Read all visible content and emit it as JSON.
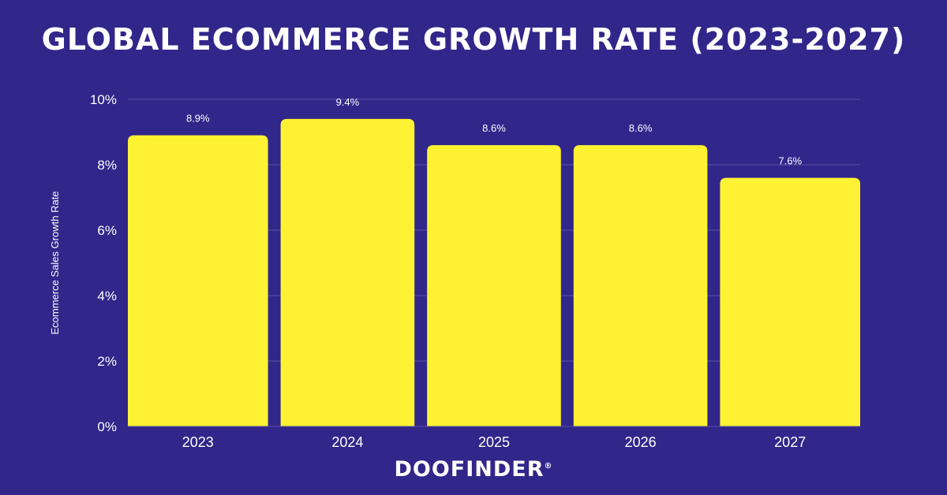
{
  "title": "GLOBAL ECOMMERCE GROWTH RATE (2023-2027)",
  "logo": {
    "text": "DOOFINDER",
    "reg": "®"
  },
  "colors": {
    "background": "#31268a",
    "bar": "#fff233",
    "text": "#ffffff",
    "grid": "#5a51a5"
  },
  "chart_data": {
    "type": "bar",
    "title": "GLOBAL ECOMMERCE GROWTH RATE (2023-2027)",
    "xlabel": "",
    "ylabel": "Ecommerce Sales Growth Rate",
    "categories": [
      "2023",
      "2024",
      "2025",
      "2026",
      "2027"
    ],
    "values": [
      8.9,
      9.4,
      8.6,
      8.6,
      7.6
    ],
    "value_labels": [
      "8.9%",
      "9.4%",
      "8.6%",
      "8.6%",
      "7.6%"
    ],
    "ylim": [
      0,
      10
    ],
    "yticks": [
      0,
      2,
      4,
      6,
      8,
      10
    ],
    "ytick_labels": [
      "0%",
      "2%",
      "4%",
      "6%",
      "8%",
      "10%"
    ],
    "grid": true,
    "legend": "none"
  }
}
